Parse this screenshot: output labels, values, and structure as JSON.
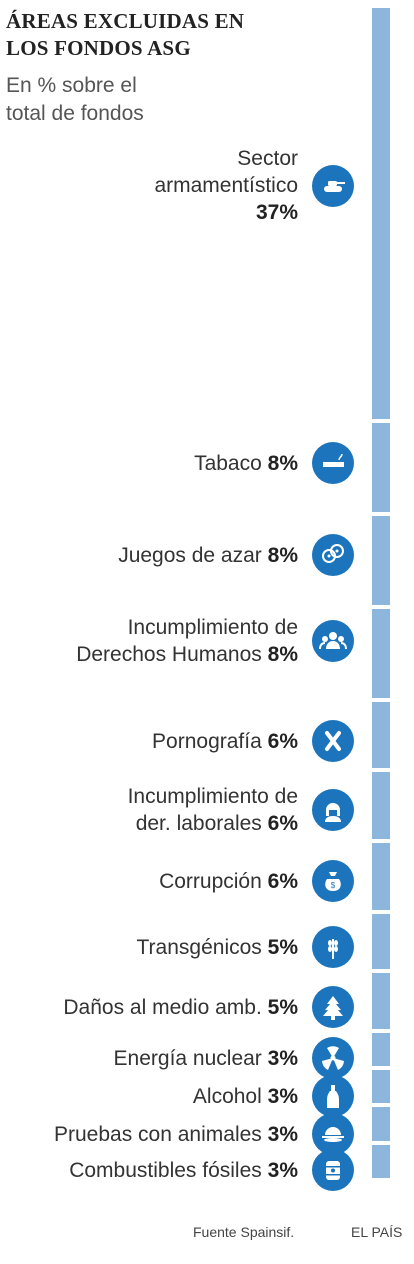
{
  "title_lines": [
    "ÁREAS EXCLUIDAS EN",
    "LOS FONDOS ASG"
  ],
  "subtitle_lines": [
    "En % sobre el",
    "total de fondos"
  ],
  "source": "Fuente Spainsif.",
  "credit": "EL PAÍS",
  "colors": {
    "bar": "#8db6dd",
    "icon_bg": "#1c75bc",
    "text": "#2b2b2b"
  },
  "chart_data": {
    "type": "bar",
    "orientation": "stacked-vertical",
    "unit": "%",
    "categories": [
      "Sector armamentístico",
      "Tabaco",
      "Juegos de azar",
      "Incumplimiento de Derechos Humanos",
      "Pornografía",
      "Incumplimiento de der. laborales",
      "Corrupción",
      "Transgénicos",
      "Daños al medio amb.",
      "Energía nuclear",
      "Alcohol",
      "Pruebas con animales",
      "Combustibles fósiles"
    ],
    "values": [
      37,
      8,
      8,
      8,
      6,
      6,
      6,
      5,
      5,
      3,
      3,
      3,
      3
    ],
    "items": [
      {
        "label_lines": [
          "Sector",
          "armamentístico"
        ],
        "value_text": "37%",
        "value": 37,
        "icon": "tank-icon"
      },
      {
        "label_lines": [
          "Tabaco"
        ],
        "value_text": "8%",
        "value": 8,
        "icon": "cigarette-icon"
      },
      {
        "label_lines": [
          "Juegos de azar"
        ],
        "value_text": "8%",
        "value": 8,
        "icon": "dice-icon"
      },
      {
        "label_lines": [
          "Incumplimiento de",
          "Derechos Humanos"
        ],
        "value_text": "8%",
        "value": 8,
        "icon": "people-icon"
      },
      {
        "label_lines": [
          "Pornografía"
        ],
        "value_text": "6%",
        "value": 6,
        "icon": "x-icon"
      },
      {
        "label_lines": [
          "Incumplimiento de",
          "der. laborales"
        ],
        "value_text": "6%",
        "value": 6,
        "icon": "worker-icon"
      },
      {
        "label_lines": [
          "Corrupción"
        ],
        "value_text": "6%",
        "value": 6,
        "icon": "money-bag-icon"
      },
      {
        "label_lines": [
          "Transgénicos"
        ],
        "value_text": "5%",
        "value": 5,
        "icon": "wheat-icon"
      },
      {
        "label_lines": [
          "Daños al medio amb."
        ],
        "value_text": "5%",
        "value": 5,
        "icon": "tree-icon"
      },
      {
        "label_lines": [
          "Energía nuclear"
        ],
        "value_text": "3%",
        "value": 3,
        "icon": "radiation-icon"
      },
      {
        "label_lines": [
          "Alcohol"
        ],
        "value_text": "3%",
        "value": 3,
        "icon": "bottle-icon"
      },
      {
        "label_lines": [
          "Pruebas con animales"
        ],
        "value_text": "3%",
        "value": 3,
        "icon": "dish-icon"
      },
      {
        "label_lines": [
          "Combustibles fósiles"
        ],
        "value_text": "3%",
        "value": 3,
        "icon": "barrel-icon"
      }
    ]
  }
}
